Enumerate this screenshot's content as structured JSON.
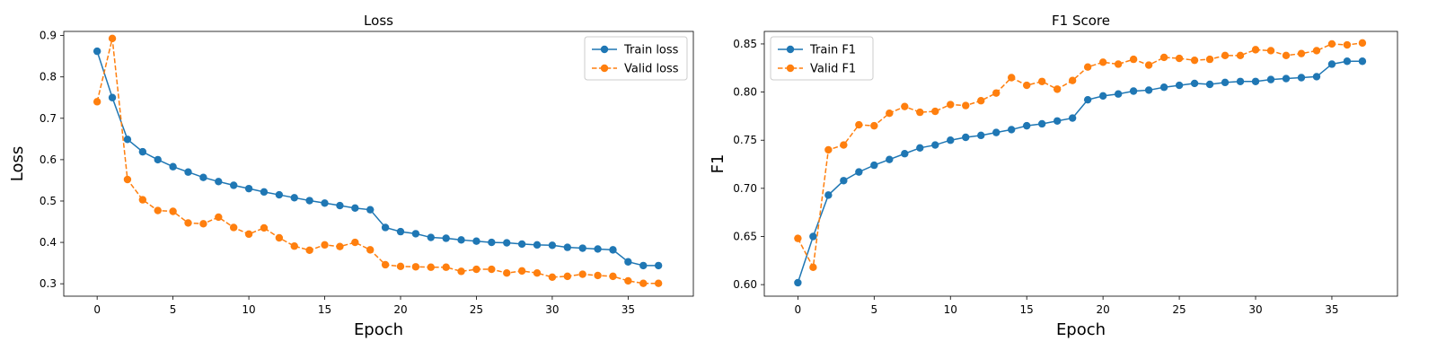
{
  "chart_data": [
    {
      "type": "line",
      "title": "Loss",
      "xlabel": "Epoch",
      "ylabel": "Loss",
      "xlim": [
        -2.2,
        39.3
      ],
      "ylim": [
        0.27,
        0.91
      ],
      "xticks": [
        0,
        5,
        10,
        15,
        20,
        25,
        30,
        35
      ],
      "yticks": [
        0.3,
        0.4,
        0.5,
        0.6,
        0.7,
        0.8,
        0.9
      ],
      "grid": false,
      "legend_position": "top-right",
      "x": [
        0,
        1,
        2,
        3,
        4,
        5,
        6,
        7,
        8,
        9,
        10,
        11,
        12,
        13,
        14,
        15,
        16,
        17,
        18,
        19,
        20,
        21,
        22,
        23,
        24,
        25,
        26,
        27,
        28,
        29,
        30,
        31,
        32,
        33,
        34,
        35,
        36,
        37
      ],
      "series": [
        {
          "name": "Train loss",
          "color": "#1f77b4",
          "linestyle": "solid",
          "marker": "circle",
          "values": [
            0.862,
            0.75,
            0.649,
            0.619,
            0.6,
            0.583,
            0.57,
            0.557,
            0.547,
            0.538,
            0.53,
            0.522,
            0.515,
            0.508,
            0.501,
            0.495,
            0.489,
            0.483,
            0.479,
            0.436,
            0.426,
            0.421,
            0.412,
            0.41,
            0.406,
            0.403,
            0.4,
            0.399,
            0.396,
            0.394,
            0.393,
            0.388,
            0.386,
            0.384,
            0.382,
            0.353,
            0.344,
            0.344
          ]
        },
        {
          "name": "Valid loss",
          "color": "#ff7f0e",
          "linestyle": "dashed",
          "marker": "circle",
          "values": [
            0.74,
            0.893,
            0.552,
            0.503,
            0.477,
            0.475,
            0.447,
            0.445,
            0.461,
            0.436,
            0.42,
            0.435,
            0.411,
            0.391,
            0.381,
            0.394,
            0.39,
            0.4,
            0.382,
            0.346,
            0.342,
            0.341,
            0.34,
            0.34,
            0.33,
            0.335,
            0.335,
            0.326,
            0.331,
            0.326,
            0.316,
            0.318,
            0.323,
            0.32,
            0.318,
            0.307,
            0.301,
            0.301
          ]
        }
      ]
    },
    {
      "type": "line",
      "title": "F1 Score",
      "xlabel": "Epoch",
      "ylabel": "F1",
      "xlim": [
        -2.2,
        39.3
      ],
      "ylim": [
        0.588,
        0.863
      ],
      "xticks": [
        0,
        5,
        10,
        15,
        20,
        25,
        30,
        35
      ],
      "yticks": [
        0.6,
        0.65,
        0.7,
        0.75,
        0.8,
        0.85
      ],
      "ytick_labels": [
        "0.60",
        "0.65",
        "0.70",
        "0.75",
        "0.80",
        "0.85"
      ],
      "grid": false,
      "legend_position": "top-left",
      "x": [
        0,
        1,
        2,
        3,
        4,
        5,
        6,
        7,
        8,
        9,
        10,
        11,
        12,
        13,
        14,
        15,
        16,
        17,
        18,
        19,
        20,
        21,
        22,
        23,
        24,
        25,
        26,
        27,
        28,
        29,
        30,
        31,
        32,
        33,
        34,
        35,
        36,
        37
      ],
      "series": [
        {
          "name": "Train F1",
          "color": "#1f77b4",
          "linestyle": "solid",
          "marker": "circle",
          "values": [
            0.602,
            0.65,
            0.693,
            0.708,
            0.717,
            0.724,
            0.73,
            0.736,
            0.742,
            0.745,
            0.75,
            0.753,
            0.755,
            0.758,
            0.761,
            0.765,
            0.767,
            0.77,
            0.773,
            0.792,
            0.796,
            0.798,
            0.801,
            0.802,
            0.805,
            0.807,
            0.809,
            0.808,
            0.81,
            0.811,
            0.811,
            0.813,
            0.814,
            0.815,
            0.816,
            0.829,
            0.832,
            0.832
          ]
        },
        {
          "name": "Valid F1",
          "color": "#ff7f0e",
          "linestyle": "dashed",
          "marker": "circle",
          "values": [
            0.648,
            0.618,
            0.74,
            0.745,
            0.766,
            0.765,
            0.778,
            0.785,
            0.779,
            0.78,
            0.787,
            0.786,
            0.791,
            0.799,
            0.815,
            0.807,
            0.811,
            0.803,
            0.812,
            0.826,
            0.831,
            0.829,
            0.834,
            0.828,
            0.836,
            0.835,
            0.833,
            0.834,
            0.838,
            0.838,
            0.844,
            0.843,
            0.838,
            0.84,
            0.843,
            0.85,
            0.849,
            0.851
          ]
        }
      ]
    }
  ]
}
